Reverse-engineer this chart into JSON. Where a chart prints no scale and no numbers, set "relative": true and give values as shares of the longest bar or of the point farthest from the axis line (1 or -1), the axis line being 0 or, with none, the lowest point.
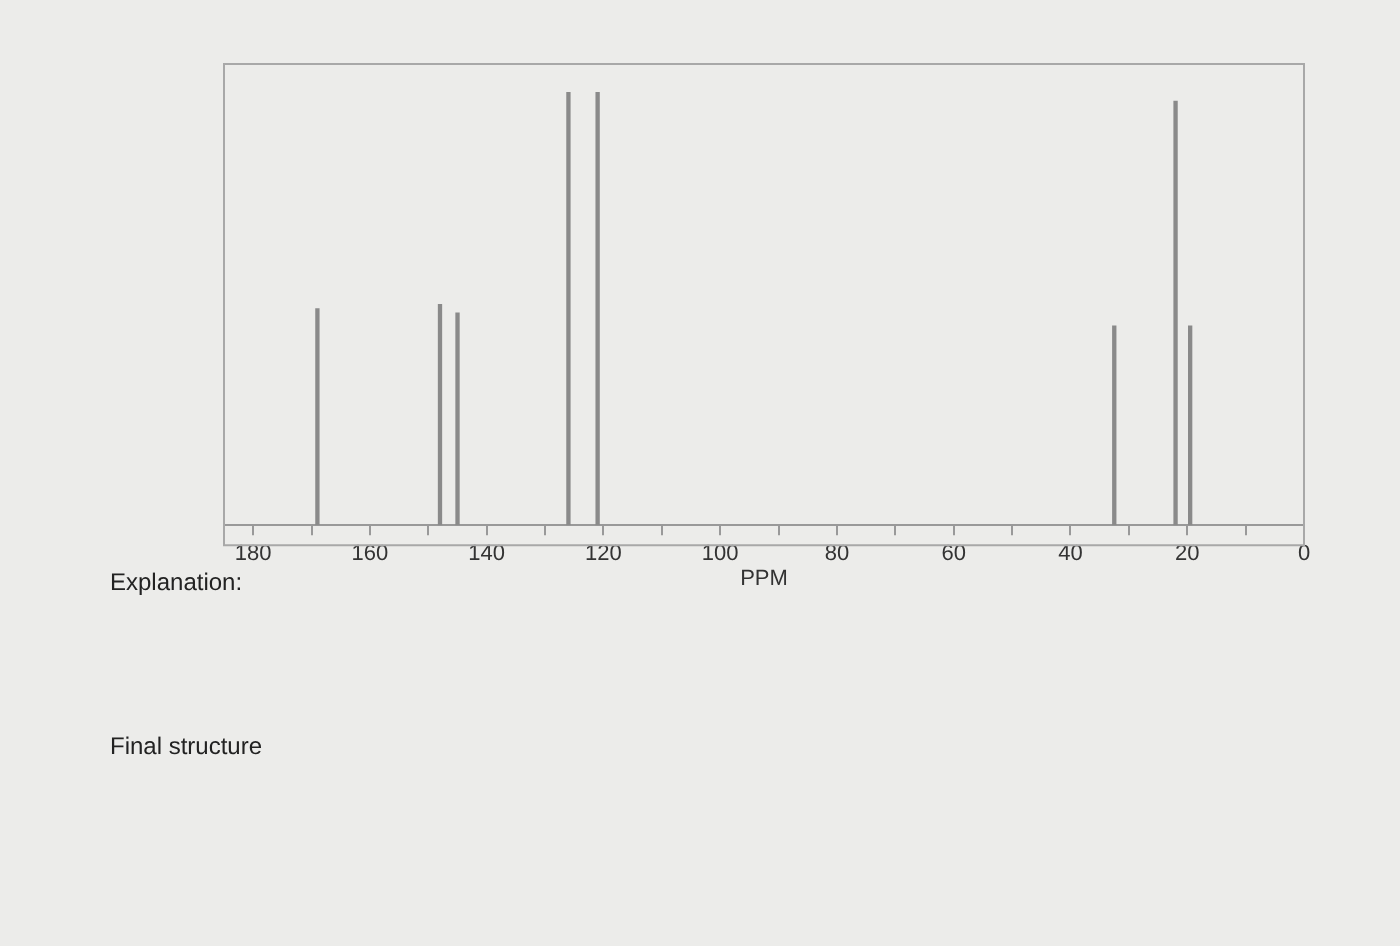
{
  "chart_data": {
    "type": "bar",
    "relative": true,
    "xlabel": "PPM",
    "x": [
      169,
      148,
      145,
      126,
      121,
      32.5,
      22,
      19.5
    ],
    "values": [
      0.5,
      0.51,
      0.49,
      1,
      1,
      0.46,
      0.98,
      0.46
    ],
    "color": "#8a8a8a",
    "xlim": [
      185,
      0
    ],
    "xticks": [
      180,
      {
        "value": 170,
        "label": null
      },
      160,
      {
        "value": 150,
        "label": null
      },
      140,
      {
        "value": 130,
        "label": null
      },
      120,
      {
        "value": 110,
        "label": null
      },
      100,
      {
        "value": 90,
        "label": null
      },
      80,
      {
        "value": 70,
        "label": null
      },
      60,
      {
        "value": 50,
        "label": null
      },
      40,
      {
        "value": 30,
        "label": null
      },
      20,
      {
        "value": 10,
        "label": null
      },
      0
    ],
    "grid": false,
    "legend": false,
    "tick_labels": "x",
    "annotations": [
      "Explanation:",
      "Final structure"
    ]
  }
}
